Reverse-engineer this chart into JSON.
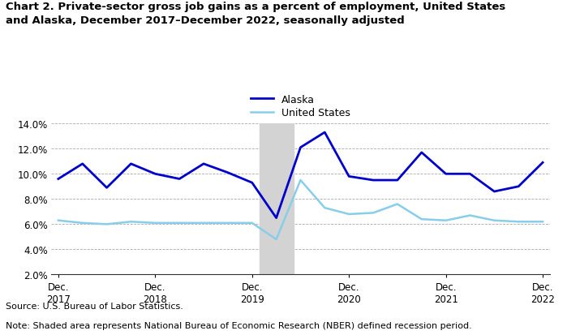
{
  "title_line1": "Chart 2. Private-sector gross job gains as a percent of employment, United States",
  "title_line2": "and Alaska, December 2017–December 2022, seasonally adjusted",
  "source": "Source: U.S. Bureau of Labor Statistics.",
  "note": "Note: Shaded area represents National Bureau of Economic Research (NBER) defined recession period.",
  "alaska_x": [
    0,
    1,
    2,
    3,
    4,
    5,
    6,
    7,
    8,
    9,
    10,
    11,
    12,
    13,
    14,
    15,
    16,
    17,
    18,
    19,
    20
  ],
  "alaska_y": [
    9.6,
    10.8,
    8.9,
    10.8,
    10.0,
    9.6,
    10.8,
    10.1,
    9.3,
    6.5,
    12.1,
    13.3,
    9.8,
    9.5,
    9.5,
    11.7,
    10.0,
    10.0,
    8.6,
    9.0,
    10.9
  ],
  "us_x": [
    0,
    1,
    2,
    3,
    4,
    5,
    6,
    7,
    8,
    9,
    10,
    11,
    12,
    13,
    14,
    15,
    16,
    17,
    18,
    19,
    20
  ],
  "us_y": [
    6.3,
    6.1,
    6.0,
    6.2,
    6.1,
    6.1,
    6.1,
    6.1,
    6.1,
    4.8,
    9.5,
    7.3,
    6.8,
    6.9,
    7.6,
    6.4,
    6.3,
    6.7,
    6.3,
    6.2,
    6.2
  ],
  "alaska_color": "#0000CD",
  "us_color": "#87CEEB",
  "recession_start": 8.3,
  "recession_end": 9.7,
  "recession_color": "#D3D3D3",
  "ylim": [
    2.0,
    14.0
  ],
  "yticks": [
    2.0,
    4.0,
    6.0,
    8.0,
    10.0,
    12.0,
    14.0
  ],
  "xlim": [
    -0.3,
    20.3
  ],
  "xtick_positions": [
    0,
    4,
    8,
    12,
    16,
    20
  ],
  "xtick_years": [
    "2017",
    "2018",
    "2019",
    "2020",
    "2021",
    "2022"
  ],
  "alaska_label": "Alaska",
  "us_label": "United States",
  "alaska_linewidth": 2.0,
  "us_linewidth": 1.8
}
